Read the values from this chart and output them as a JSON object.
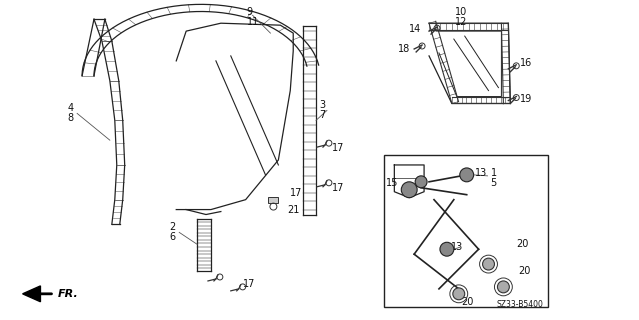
{
  "bg_color": "#ffffff",
  "part_number": "SZ33-B5400",
  "color": "#222222",
  "hatch_color": "#555555"
}
